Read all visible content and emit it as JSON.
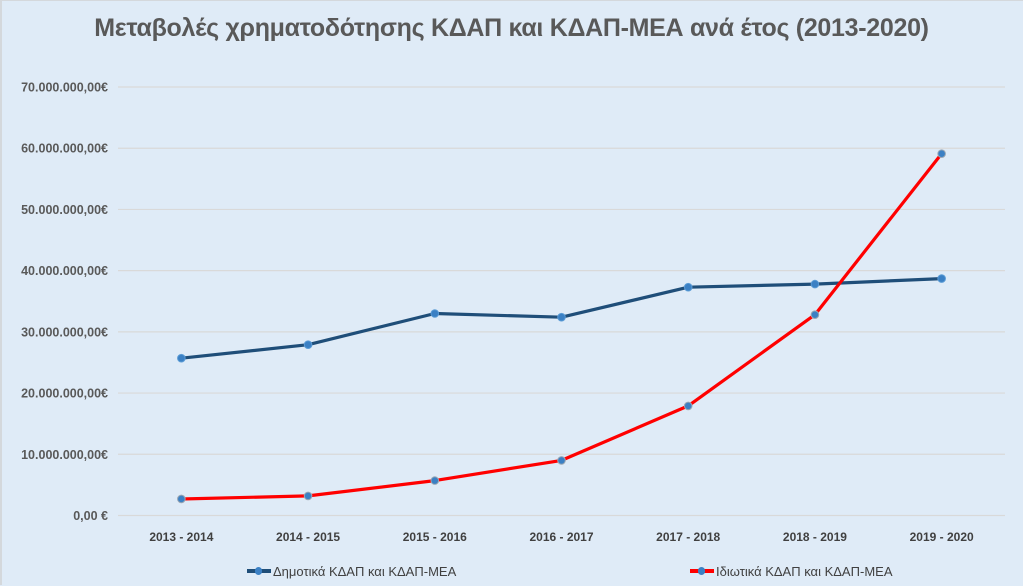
{
  "chart_data": {
    "type": "line",
    "title": "Μεταβολές χρηματοδότησης ΚΔΑΠ και ΚΔΑΠ-ΜΕΑ ανά έτος (2013-2020)",
    "xlabel": "",
    "ylabel": "",
    "categories": [
      "2013 - 2014",
      "2014 - 2015",
      "2015 - 2016",
      "2016 - 2017",
      "2017 - 2018",
      "2018 - 2019",
      "2019 - 2020"
    ],
    "ylim": [
      0,
      70000000
    ],
    "yticks": [
      0,
      10000000,
      20000000,
      30000000,
      40000000,
      50000000,
      60000000,
      70000000
    ],
    "ytick_labels": [
      "0,00 €",
      "10.000.000,00€",
      "20.000.000,00€",
      "30.000.000,00€",
      "40.000.000,00€",
      "50.000.000,00€",
      "60.000.000,00€",
      "70.000.000,00€"
    ],
    "grid": true,
    "legend_position": "bottom",
    "series": [
      {
        "name": "Δημοτικά ΚΔΑΠ και ΚΔΑΠ-ΜΕΑ",
        "color": "#1f4e79",
        "marker_color": "#3b80c4",
        "values": [
          25700000,
          27900000,
          33000000,
          32400000,
          37300000,
          37800000,
          38700000
        ]
      },
      {
        "name": "Ιδιωτικά ΚΔΑΠ και ΚΔΑΠ-ΜΕΑ",
        "color": "#ff0000",
        "marker_color": "#3b80c4",
        "values": [
          2700000,
          3200000,
          5700000,
          9000000,
          17900000,
          32800000,
          59100000
        ]
      }
    ]
  }
}
